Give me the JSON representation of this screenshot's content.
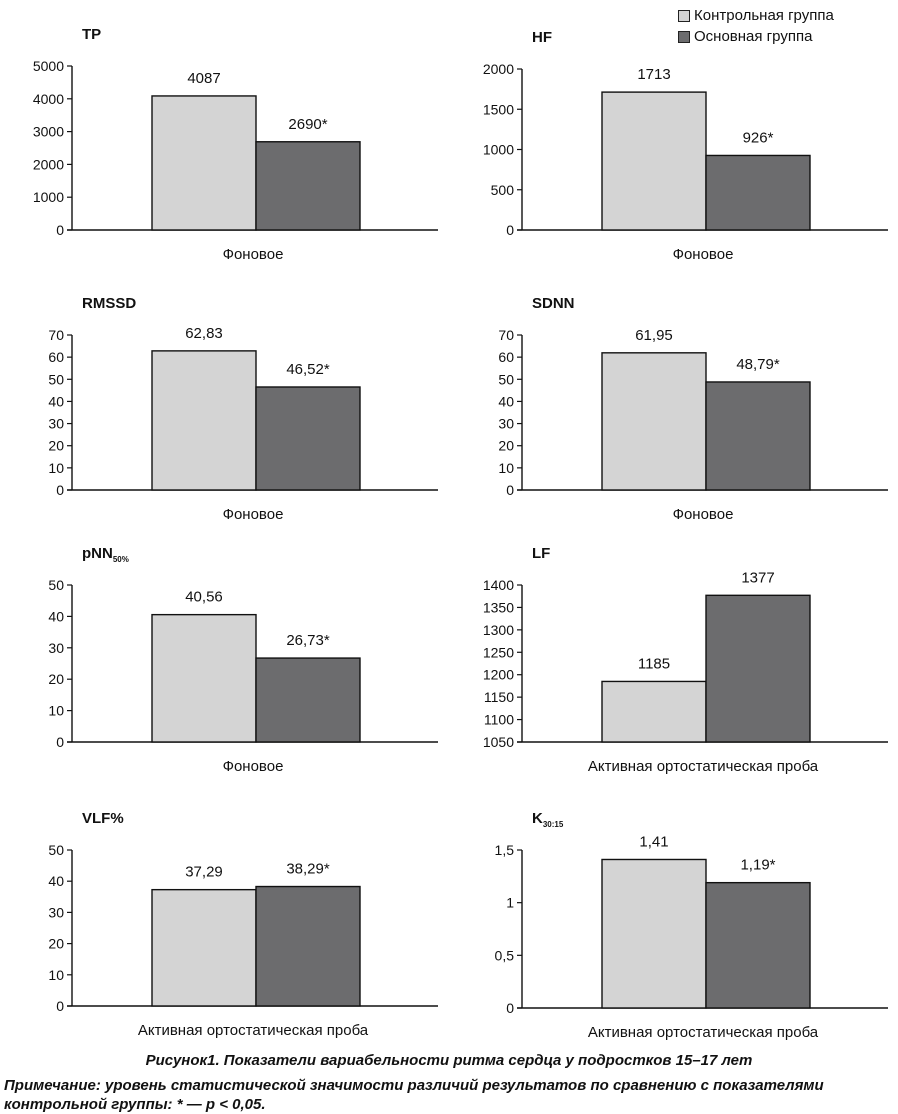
{
  "legend": {
    "items": [
      {
        "label": "Контрольная группа",
        "color": "#d4d4d4"
      },
      {
        "label": "Основная группа",
        "color": "#6c6c6e"
      }
    ]
  },
  "caption": "Рисунок1. Показатели вариабельности ритма сердца у подростков 15–17 лет",
  "note": "Примечание: уровень статистической значимости различий результатов по сравнению с показателями контрольной группы: * — p < 0,05.",
  "chart_data": [
    {
      "type": "bar",
      "title": "TP",
      "category": "Фоновое",
      "ylim": [
        0,
        5000
      ],
      "ticks": [
        {
          "v": 0,
          "t": "0"
        },
        {
          "v": 1000,
          "t": "1000"
        },
        {
          "v": 2000,
          "t": "2000"
        },
        {
          "v": 3000,
          "t": "3000"
        },
        {
          "v": 4000,
          "t": "4000"
        },
        {
          "v": 5000,
          "t": "5000"
        }
      ],
      "series": [
        {
          "name": "Контрольная группа",
          "value": 4087,
          "label": "4087"
        },
        {
          "name": "Основная группа",
          "value": 2690,
          "label": "2690*"
        }
      ]
    },
    {
      "type": "bar",
      "title": "HF",
      "category": "Фоновое",
      "ylim": [
        0,
        2000
      ],
      "ticks": [
        {
          "v": 0,
          "t": "0"
        },
        {
          "v": 500,
          "t": "500"
        },
        {
          "v": 1000,
          "t": "1000"
        },
        {
          "v": 1500,
          "t": "1500"
        },
        {
          "v": 2000,
          "t": "2000"
        }
      ],
      "series": [
        {
          "name": "Контрольная группа",
          "value": 1713,
          "label": "1713"
        },
        {
          "name": "Основная группа",
          "value": 926,
          "label": "926*"
        }
      ]
    },
    {
      "type": "bar",
      "title": "RMSSD",
      "category": "Фоновое",
      "ylim": [
        0,
        70
      ],
      "ticks": [
        {
          "v": 0,
          "t": "0"
        },
        {
          "v": 10,
          "t": "10"
        },
        {
          "v": 20,
          "t": "20"
        },
        {
          "v": 30,
          "t": "30"
        },
        {
          "v": 40,
          "t": "40"
        },
        {
          "v": 50,
          "t": "50"
        },
        {
          "v": 60,
          "t": "60"
        },
        {
          "v": 70,
          "t": "70"
        }
      ],
      "series": [
        {
          "name": "Контрольная группа",
          "value": 62.83,
          "label": "62,83"
        },
        {
          "name": "Основная группа",
          "value": 46.52,
          "label": "46,52*"
        }
      ]
    },
    {
      "type": "bar",
      "title": "SDNN",
      "category": "Фоновое",
      "ylim": [
        0,
        70
      ],
      "ticks": [
        {
          "v": 0,
          "t": "0"
        },
        {
          "v": 10,
          "t": "10"
        },
        {
          "v": 20,
          "t": "20"
        },
        {
          "v": 30,
          "t": "30"
        },
        {
          "v": 40,
          "t": "40"
        },
        {
          "v": 50,
          "t": "50"
        },
        {
          "v": 60,
          "t": "60"
        },
        {
          "v": 70,
          "t": "70"
        }
      ],
      "series": [
        {
          "name": "Контрольная группа",
          "value": 61.95,
          "label": "61,95"
        },
        {
          "name": "Основная группа",
          "value": 48.79,
          "label": "48,79*"
        }
      ]
    },
    {
      "type": "bar",
      "title": "pNN",
      "title_sub": "50%",
      "category": "Фоновое",
      "ylim": [
        0,
        50
      ],
      "ticks": [
        {
          "v": 0,
          "t": "0"
        },
        {
          "v": 10,
          "t": "10"
        },
        {
          "v": 20,
          "t": "20"
        },
        {
          "v": 30,
          "t": "30"
        },
        {
          "v": 40,
          "t": "40"
        },
        {
          "v": 50,
          "t": "50"
        }
      ],
      "series": [
        {
          "name": "Контрольная группа",
          "value": 40.56,
          "label": "40,56"
        },
        {
          "name": "Основная группа",
          "value": 26.73,
          "label": "26,73*"
        }
      ]
    },
    {
      "type": "bar",
      "title": "LF",
      "category": "Активная ортостатическая проба",
      "ylim": [
        1050,
        1400
      ],
      "ticks": [
        {
          "v": 1050,
          "t": "1050"
        },
        {
          "v": 1100,
          "t": "1100"
        },
        {
          "v": 1150,
          "t": "1150"
        },
        {
          "v": 1200,
          "t": "1200"
        },
        {
          "v": 1250,
          "t": "1250"
        },
        {
          "v": 1300,
          "t": "1300"
        },
        {
          "v": 1350,
          "t": "1350"
        },
        {
          "v": 1400,
          "t": "1400"
        }
      ],
      "series": [
        {
          "name": "Контрольная группа",
          "value": 1185,
          "label": "1185"
        },
        {
          "name": "Основная группа",
          "value": 1377,
          "label": "1377"
        }
      ]
    },
    {
      "type": "bar",
      "title": "VLF%",
      "category": "Активная ортостатическая проба",
      "ylim": [
        0,
        50
      ],
      "ticks": [
        {
          "v": 0,
          "t": "0"
        },
        {
          "v": 10,
          "t": "10"
        },
        {
          "v": 20,
          "t": "20"
        },
        {
          "v": 30,
          "t": "30"
        },
        {
          "v": 40,
          "t": "40"
        },
        {
          "v": 50,
          "t": "50"
        }
      ],
      "series": [
        {
          "name": "Контрольная группа",
          "value": 37.29,
          "label": "37,29"
        },
        {
          "name": "Основная группа",
          "value": 38.29,
          "label": "38,29*"
        }
      ]
    },
    {
      "type": "bar",
      "title": "K",
      "title_sub": "30:15",
      "category": "Активная ортостатическая проба",
      "ylim": [
        0,
        1.5
      ],
      "ticks": [
        {
          "v": 0,
          "t": "0"
        },
        {
          "v": 0.5,
          "t": "0,5"
        },
        {
          "v": 1,
          "t": "1"
        },
        {
          "v": 1.5,
          "t": "1,5"
        }
      ],
      "series": [
        {
          "name": "Контрольная группа",
          "value": 1.41,
          "label": "1,41"
        },
        {
          "name": "Основная группа",
          "value": 1.19,
          "label": "1,19*"
        }
      ]
    }
  ]
}
